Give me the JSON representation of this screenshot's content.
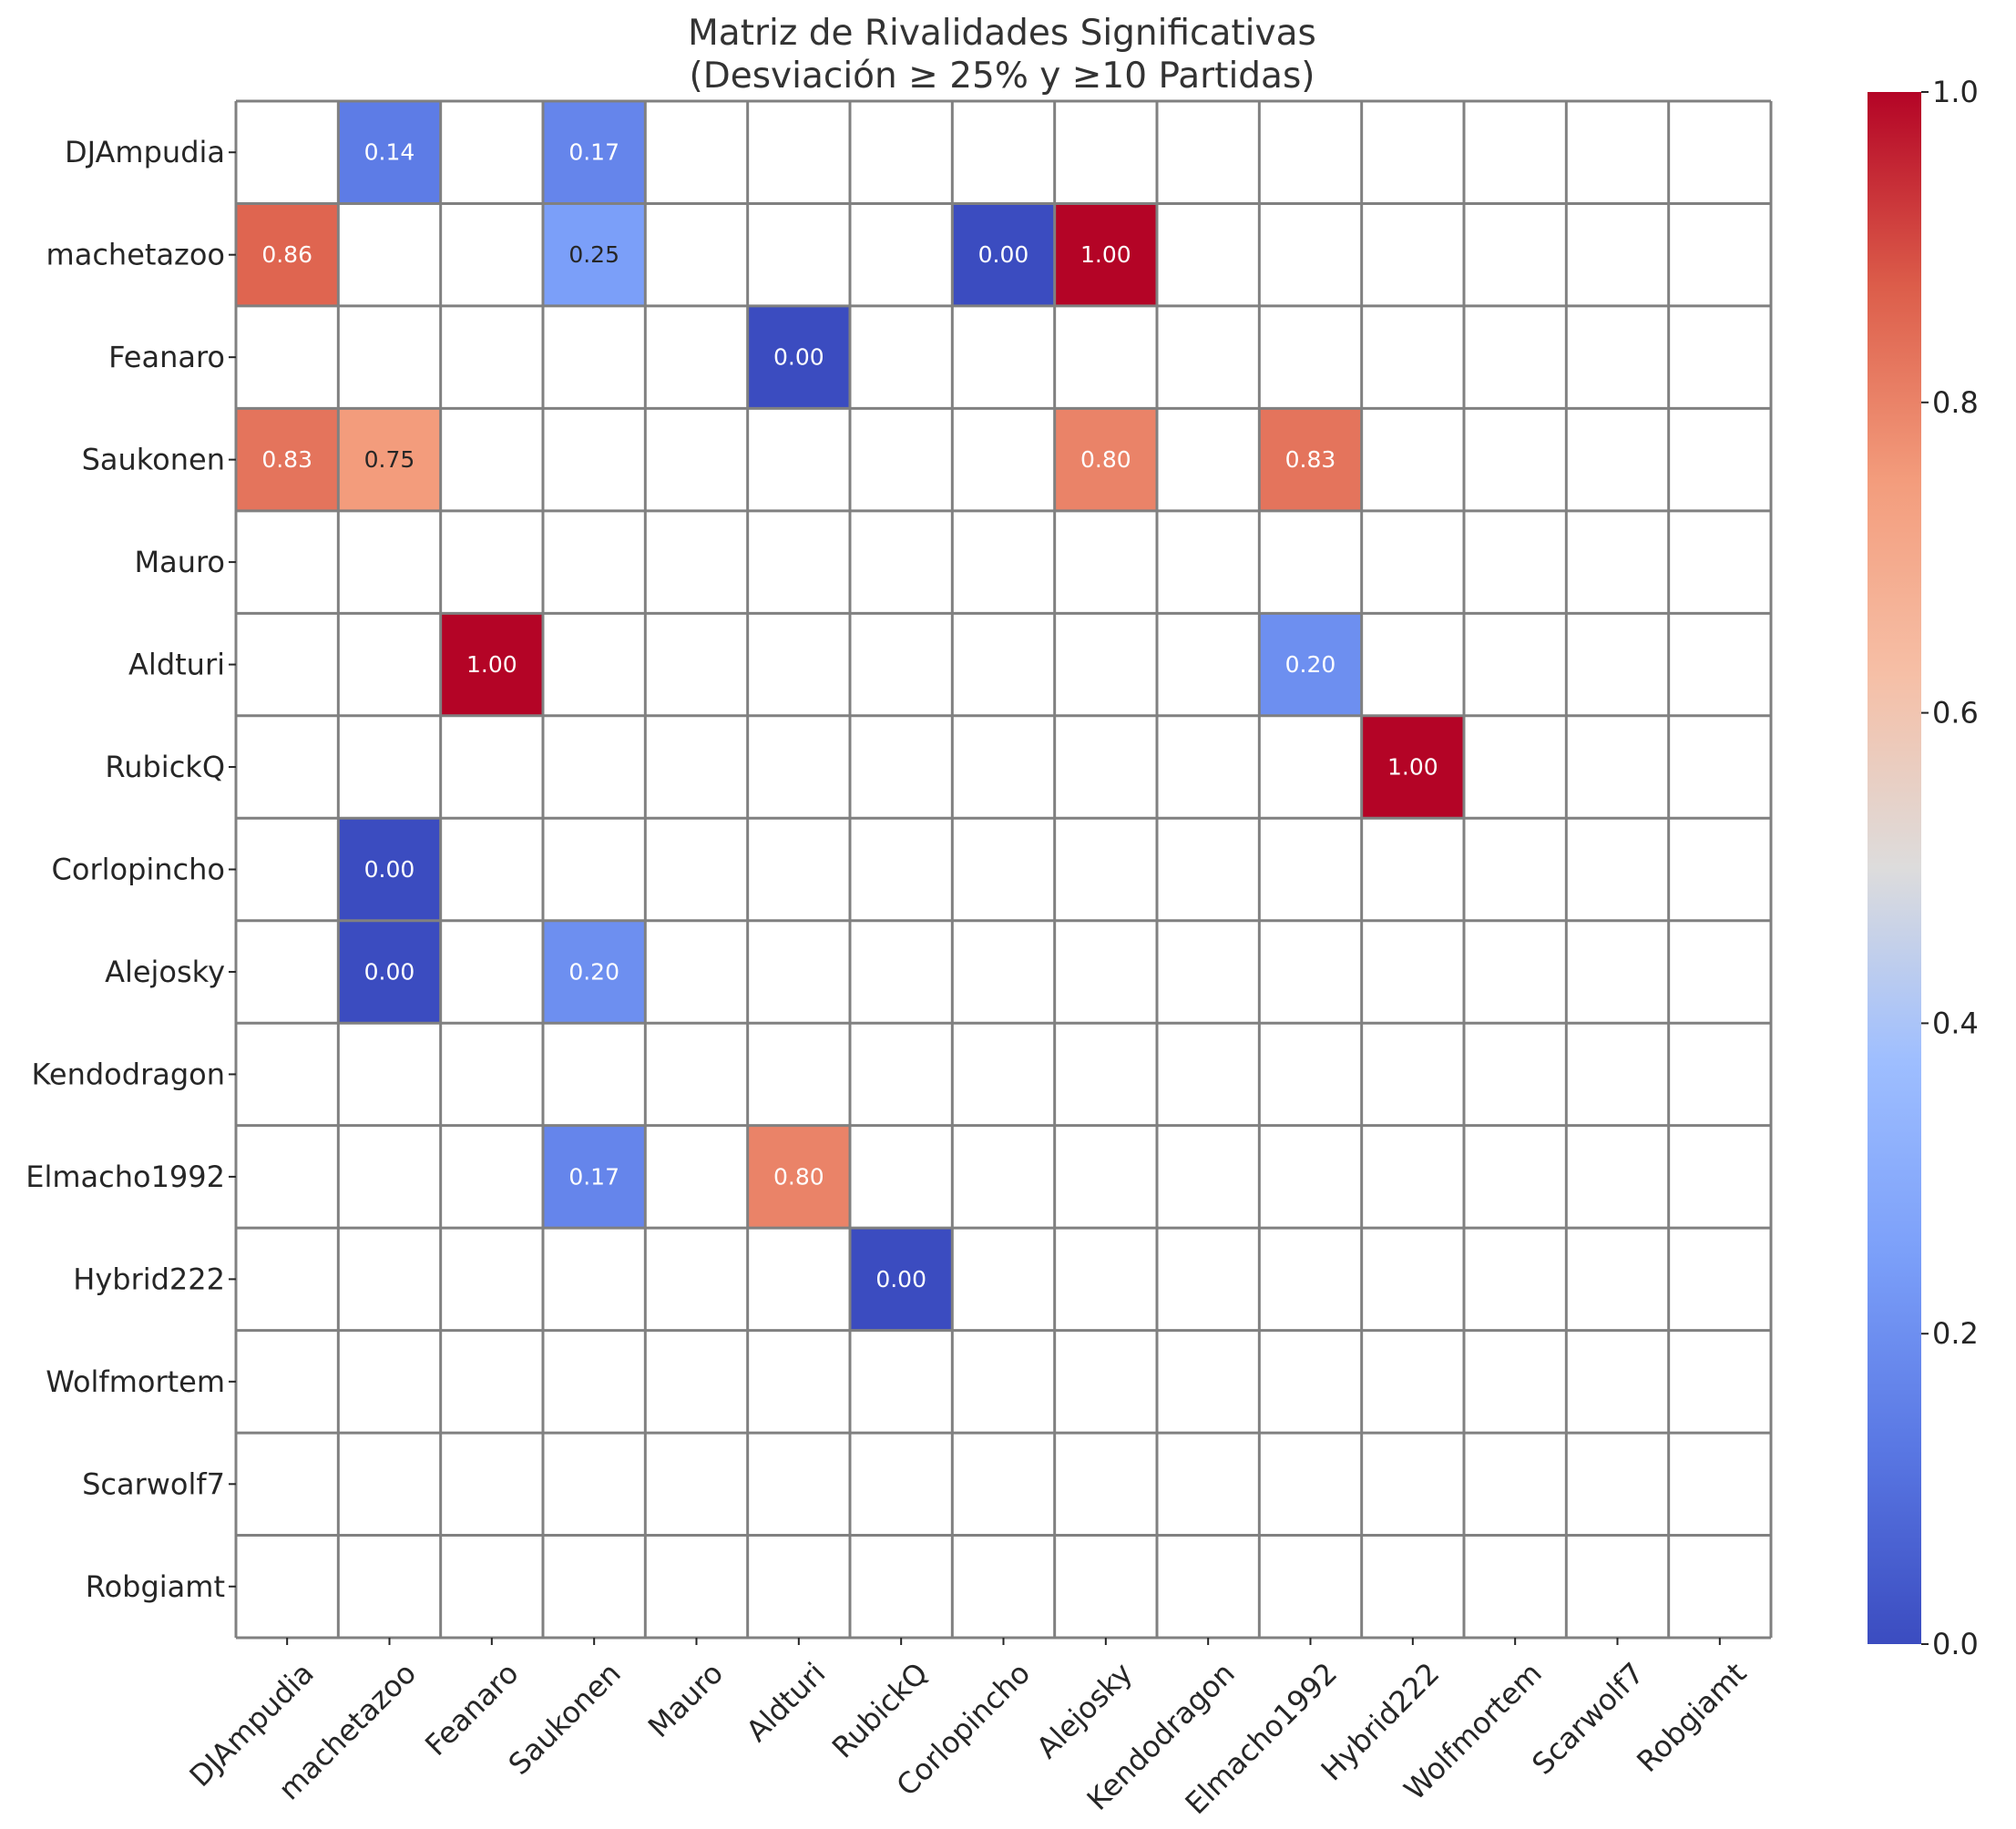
{
  "chart_data": {
    "type": "heatmap",
    "title_lines": [
      "Matriz de Rivalidades Significativas",
      "(Desviación ≥ 25% y ≥10 Partidas)"
    ],
    "row_labels": [
      "DJAmpudia",
      "machetazoo",
      "Feanaro",
      "Saukonen",
      "Mauro",
      "Aldturi",
      "RubickQ",
      "Corlopincho",
      "Alejosky",
      "Kendodragon",
      "Elmacho1992",
      "Hybrid222",
      "Wolfmortem",
      "Scarwolf7",
      "Robgiamt"
    ],
    "col_labels": [
      "DJAmpudia",
      "machetazoo",
      "Feanaro",
      "Saukonen",
      "Mauro",
      "Aldturi",
      "RubickQ",
      "Corlopincho",
      "Alejosky",
      "Kendodragon",
      "Elmacho1992",
      "Hybrid222",
      "Wolfmortem",
      "Scarwolf7",
      "Robgiamt"
    ],
    "values": [
      [
        null,
        0.14,
        null,
        0.17,
        null,
        null,
        null,
        null,
        null,
        null,
        null,
        null,
        null,
        null,
        null
      ],
      [
        0.86,
        null,
        null,
        0.25,
        null,
        null,
        null,
        0.0,
        1.0,
        null,
        null,
        null,
        null,
        null,
        null
      ],
      [
        null,
        null,
        null,
        null,
        null,
        0.0,
        null,
        null,
        null,
        null,
        null,
        null,
        null,
        null,
        null
      ],
      [
        0.83,
        0.75,
        null,
        null,
        null,
        null,
        null,
        null,
        0.8,
        null,
        0.83,
        null,
        null,
        null,
        null
      ],
      [
        null,
        null,
        null,
        null,
        null,
        null,
        null,
        null,
        null,
        null,
        null,
        null,
        null,
        null,
        null
      ],
      [
        null,
        null,
        1.0,
        null,
        null,
        null,
        null,
        null,
        null,
        null,
        0.2,
        null,
        null,
        null,
        null
      ],
      [
        null,
        null,
        null,
        null,
        null,
        null,
        null,
        null,
        null,
        null,
        null,
        1.0,
        null,
        null,
        null
      ],
      [
        null,
        0.0,
        null,
        null,
        null,
        null,
        null,
        null,
        null,
        null,
        null,
        null,
        null,
        null,
        null
      ],
      [
        null,
        0.0,
        null,
        0.2,
        null,
        null,
        null,
        null,
        null,
        null,
        null,
        null,
        null,
        null,
        null
      ],
      [
        null,
        null,
        null,
        null,
        null,
        null,
        null,
        null,
        null,
        null,
        null,
        null,
        null,
        null,
        null
      ],
      [
        null,
        null,
        null,
        0.17,
        null,
        0.8,
        null,
        null,
        null,
        null,
        null,
        null,
        null,
        null,
        null
      ],
      [
        null,
        null,
        null,
        null,
        null,
        null,
        0.0,
        null,
        null,
        null,
        null,
        null,
        null,
        null,
        null
      ],
      [
        null,
        null,
        null,
        null,
        null,
        null,
        null,
        null,
        null,
        null,
        null,
        null,
        null,
        null,
        null
      ],
      [
        null,
        null,
        null,
        null,
        null,
        null,
        null,
        null,
        null,
        null,
        null,
        null,
        null,
        null,
        null
      ],
      [
        null,
        null,
        null,
        null,
        null,
        null,
        null,
        null,
        null,
        null,
        null,
        null,
        null,
        null,
        null
      ]
    ],
    "colorscale": "coolwarm",
    "vmin": 0.0,
    "vmax": 1.0,
    "colorbar_ticks": [
      "0.0",
      "0.2",
      "0.4",
      "0.6",
      "0.8",
      "1.0"
    ],
    "grid_color": "#808080"
  }
}
